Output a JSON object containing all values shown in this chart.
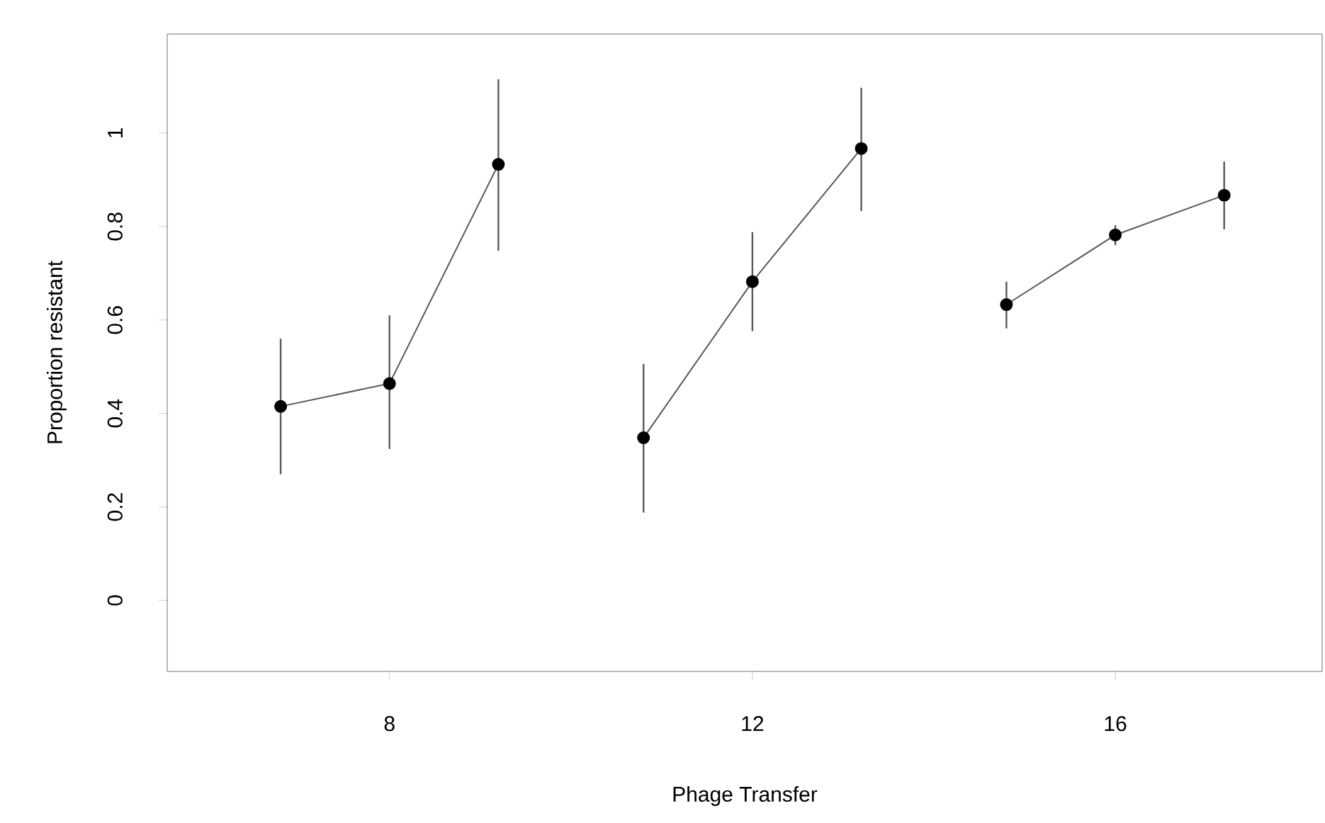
{
  "chart_data": {
    "type": "line",
    "xlabel": "Phage Transfer",
    "ylabel": "Proportion resistant",
    "xlim": [
      5.55,
      18.28
    ],
    "ylim": [
      -0.152,
      1.212
    ],
    "xticks": [
      8,
      12,
      16
    ],
    "yticks": [
      0,
      0.2,
      0.4,
      0.6,
      0.8,
      1
    ],
    "marker": "circle",
    "line_style": "solid",
    "grid": false,
    "series": [
      {
        "color": "#000000",
        "x": [
          6.8,
          8,
          9.2
        ],
        "values": [
          0.415,
          0.464,
          0.933
        ],
        "errors": [
          [
            0.27,
            0.56
          ],
          [
            0.324,
            0.61
          ],
          [
            0.748,
            1.115
          ]
        ]
      },
      {
        "color": "#000000",
        "x": [
          10.8,
          12,
          13.2
        ],
        "values": [
          0.348,
          0.682,
          0.967
        ],
        "errors": [
          [
            0.188,
            0.506
          ],
          [
            0.576,
            0.788
          ],
          [
            0.833,
            1.097
          ]
        ]
      },
      {
        "color": "#000000",
        "x": [
          14.8,
          16,
          17.2
        ],
        "values": [
          0.633,
          0.782,
          0.867
        ],
        "errors": [
          [
            0.582,
            0.682
          ],
          [
            0.76,
            0.803
          ],
          [
            0.794,
            0.939
          ]
        ]
      }
    ]
  }
}
